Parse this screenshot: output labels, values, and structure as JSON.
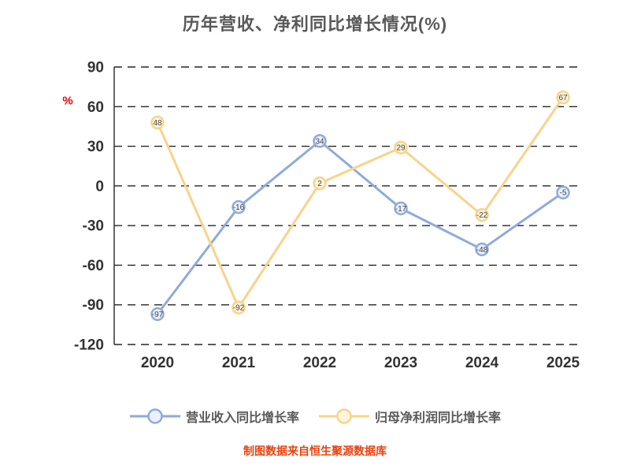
{
  "footer": "制图数据来自恒生聚源数据库",
  "chart_data": {
    "type": "line",
    "title": "历年营收、净利同比增长情况(%)",
    "ylabel": "%",
    "categories": [
      "2020",
      "2021",
      "2022",
      "2023",
      "2024",
      "2025"
    ],
    "series": [
      {
        "name": "营业收入同比增长率",
        "color": "#8faadc",
        "marker_fill": "#eaf1fb",
        "values": [
          -97,
          -16,
          34,
          -17,
          -48,
          -5
        ]
      },
      {
        "name": "归母净利润同比增长率",
        "color": "#f8d389",
        "marker_fill": "#fdf5de",
        "values": [
          48,
          -92,
          2,
          29,
          -22,
          67
        ]
      }
    ],
    "ylim": [
      -120,
      90
    ],
    "yticks": [
      90,
      60,
      30,
      0,
      -30,
      -60,
      -90,
      -120
    ],
    "grid": "horizontal-dashed",
    "legend_position": "bottom",
    "colors": {
      "title": "#595959",
      "axis_text": "#333333",
      "grid": "#262626",
      "axis_line": "#333333",
      "ylabel_red": "#e60000",
      "footer": "#e8420d",
      "value_label": "#404040"
    }
  }
}
